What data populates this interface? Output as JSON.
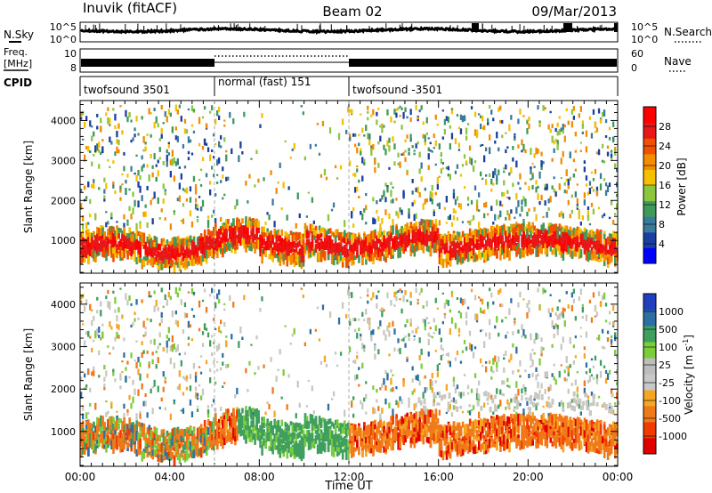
{
  "header": {
    "station": "Inuvik (fitACF)",
    "beam": "Beam 02",
    "date": "09/Mar/2013"
  },
  "side_labels": {
    "nsky": "N.Sky",
    "nsearch": "N.Search",
    "freq_line1": "Freq.",
    "freq_line2": "[MHz]",
    "nave": "Nave",
    "cpid": "CPID"
  },
  "noise_axis": {
    "top": "10^5",
    "bottom": "10^0",
    "right_top": "10^5",
    "right_bottom": "10^0"
  },
  "freq_axis": {
    "ticks": [
      "10",
      "8"
    ],
    "right_ticks": [
      "60",
      "0"
    ]
  },
  "cpid_segments": [
    {
      "label": "twofsound 3501",
      "start_hour": 0,
      "end_hour": 6
    },
    {
      "label": "normal (fast) 151",
      "start_hour": 6,
      "end_hour": 12
    },
    {
      "label": "twofsound -3501",
      "start_hour": 12,
      "end_hour": 24
    }
  ],
  "colors": {
    "power": [
      "#0000ff",
      "#1a3fa0",
      "#3a7a9a",
      "#3f9a5a",
      "#8cc63f",
      "#f5c000",
      "#f28c00",
      "#f05000",
      "#e81818",
      "#ff0000"
    ],
    "velocity": [
      "#e00000",
      "#f03c00",
      "#f07a1a",
      "#f5a623",
      "#c8c8c8",
      "#bdbdbd",
      "#7ccd3c",
      "#3f9f5f",
      "#2e6fa3",
      "#1f3fbf"
    ],
    "grey": "#c8c8c0"
  },
  "chart_data": [
    {
      "type": "heatmap",
      "title": "",
      "xlabel": "",
      "ylabel": "Slant Range [km]",
      "x_range_hours": [
        0,
        24
      ],
      "ylim_km": [
        180,
        4500
      ],
      "y_ticks": [
        1000,
        2000,
        3000,
        4000
      ],
      "colorbar": {
        "label": "Power [dB]",
        "range": [
          0,
          32
        ],
        "ticks": [
          "4",
          "8",
          "12",
          "16",
          "20",
          "24",
          "28"
        ]
      }
    },
    {
      "type": "heatmap",
      "title": "",
      "xlabel": "Time UT",
      "ylabel": "Slant Range [km]",
      "x_range_hours": [
        0,
        24
      ],
      "x_ticks": [
        "00:00",
        "04:00",
        "08:00",
        "12:00",
        "16:00",
        "20:00",
        "00:00"
      ],
      "ylim_km": [
        180,
        4500
      ],
      "y_ticks": [
        1000,
        2000,
        3000,
        4000
      ],
      "colorbar": {
        "label": "Velocity [m s^-1]",
        "ticks": [
          "-1000",
          "-500",
          "-100",
          "-25",
          "25",
          "100",
          "500",
          "1000"
        ]
      }
    }
  ]
}
